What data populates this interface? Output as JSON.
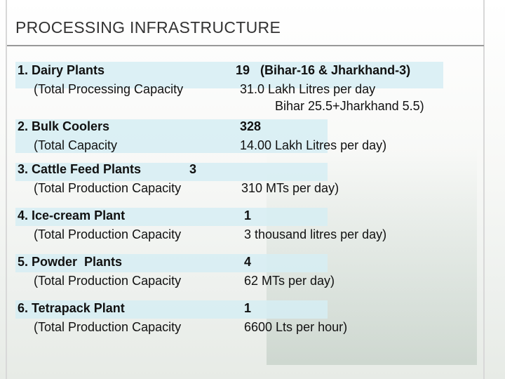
{
  "header": {
    "title": "PROCESSING INFRASTRUCTURE"
  },
  "items": [
    {
      "label": "1. Dairy Plants",
      "sub": "(Total Processing Capacity",
      "value": "19   (Bihar-16 & Jharkhand-3)",
      "details": [
        "31.0 Lakh Litres per day",
        "Bihar 25.5+Jharkhand 5.5)"
      ]
    },
    {
      "label": "2. Bulk Coolers",
      "sub": "(Total Capacity",
      "value": "328",
      "details": [
        "14.00 Lakh Litres per day)"
      ]
    },
    {
      "label": "3. Cattle Feed Plants",
      "sub": "(Total Production Capacity",
      "value": "3",
      "details": [
        "310 MTs per day)"
      ]
    },
    {
      "label": "4. Ice-cream Plant",
      "sub": "(Total Production Capacity",
      "value": "1",
      "details": [
        "3 thousand litres per day)"
      ]
    },
    {
      "label": "5. Powder  Plants",
      "sub": "(Total Production Capacity",
      "value": "4",
      "details": [
        "62 MTs per day)"
      ]
    },
    {
      "label": "6. Tetrapack Plant",
      "sub": "(Total Production Capacity",
      "value": "1",
      "details": [
        "6600 Lts per hour)"
      ]
    }
  ]
}
